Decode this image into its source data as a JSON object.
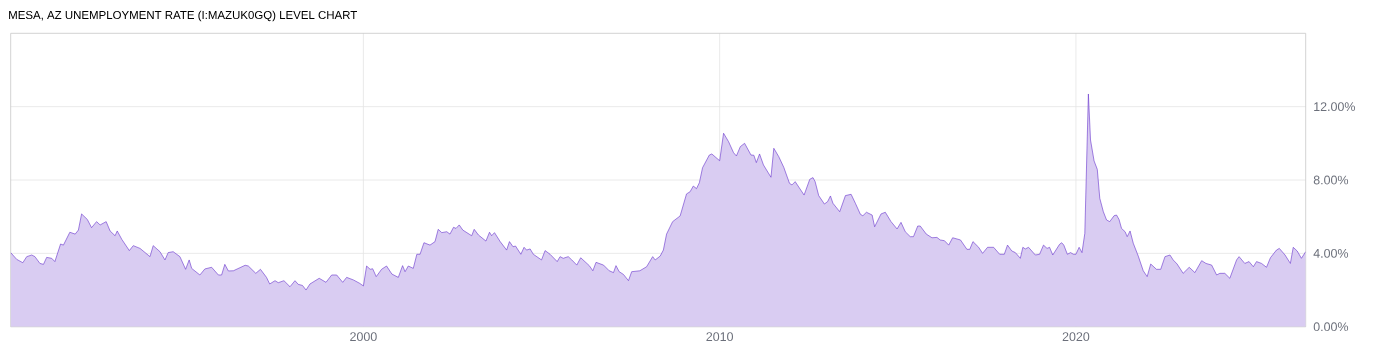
{
  "chart_data": {
    "type": "area",
    "title": "MESA, AZ UNEMPLOYMENT RATE (I:MAZUK0GQ) LEVEL CHART",
    "color": "#6633cc",
    "grid": true,
    "xlim": [
      1990.1,
      2026.45
    ],
    "ylim": [
      0,
      16
    ],
    "xticks": [
      2000,
      2010,
      2020
    ],
    "yticks": [
      {
        "value": 0,
        "label": "0.00%"
      },
      {
        "value": 4,
        "label": "4.00%"
      },
      {
        "value": 8,
        "label": "8.00%"
      },
      {
        "value": 12,
        "label": "12.00%"
      }
    ],
    "x": [
      1990.1,
      1990.27,
      1990.44,
      1990.55,
      1990.69,
      1990.78,
      1990.92,
      1991.02,
      1991.11,
      1991.25,
      1991.34,
      1991.5,
      1991.58,
      1991.76,
      1991.91,
      1992.0,
      1992.09,
      1992.25,
      1992.37,
      1992.51,
      1992.61,
      1992.78,
      1992.89,
      1993.03,
      1993.09,
      1993.22,
      1993.43,
      1993.54,
      1993.73,
      1994.01,
      1994.1,
      1994.29,
      1994.43,
      1994.52,
      1994.66,
      1994.85,
      1995.01,
      1995.11,
      1995.18,
      1995.41,
      1995.55,
      1995.74,
      1995.93,
      1996.02,
      1996.11,
      1996.21,
      1996.35,
      1996.68,
      1996.77,
      1996.98,
      1997.11,
      1997.28,
      1997.37,
      1997.52,
      1997.61,
      1997.77,
      1997.94,
      1998.08,
      1998.17,
      1998.29,
      1998.39,
      1998.5,
      1998.76,
      1998.95,
      1999.11,
      1999.25,
      1999.42,
      1999.53,
      1999.72,
      1999.9,
      2000.0,
      2000.09,
      2000.19,
      2000.26,
      2000.36,
      2000.51,
      2000.65,
      2000.8,
      2000.98,
      2001.1,
      2001.17,
      2001.26,
      2001.4,
      2001.5,
      2001.59,
      2001.7,
      2001.87,
      2002.01,
      2002.1,
      2002.2,
      2002.34,
      2002.43,
      2002.53,
      2002.6,
      2002.69,
      2002.79,
      2003.04,
      2003.11,
      2003.23,
      2003.44,
      2003.54,
      2003.6,
      2003.68,
      2003.84,
      2004.02,
      2004.1,
      2004.2,
      2004.27,
      2004.42,
      2004.51,
      2004.58,
      2004.68,
      2004.77,
      2005.0,
      2005.1,
      2005.24,
      2005.44,
      2005.52,
      2005.61,
      2005.75,
      2005.85,
      2005.99,
      2006.1,
      2006.34,
      2006.44,
      2006.53,
      2006.74,
      2006.9,
      2007.02,
      2007.09,
      2007.18,
      2007.3,
      2007.44,
      2007.53,
      2007.76,
      2007.95,
      2008.12,
      2008.19,
      2008.33,
      2008.42,
      2008.51,
      2008.68,
      2008.89,
      2009.07,
      2009.17,
      2009.26,
      2009.35,
      2009.43,
      2009.52,
      2009.71,
      2009.78,
      2010.0,
      2010.11,
      2010.25,
      2010.39,
      2010.47,
      2010.58,
      2010.7,
      2010.88,
      2010.96,
      2011.03,
      2011.12,
      2011.23,
      2011.44,
      2011.52,
      2011.66,
      2011.8,
      2011.96,
      2012.03,
      2012.12,
      2012.37,
      2012.53,
      2012.62,
      2012.68,
      2012.78,
      2012.94,
      2013.03,
      2013.11,
      2013.18,
      2013.37,
      2013.53,
      2013.69,
      2013.81,
      2013.95,
      2014.02,
      2014.12,
      2014.28,
      2014.35,
      2014.53,
      2014.65,
      2014.81,
      2014.98,
      2015.09,
      2015.21,
      2015.35,
      2015.44,
      2015.56,
      2015.63,
      2015.8,
      2015.96,
      2016.1,
      2016.19,
      2016.31,
      2016.43,
      2016.54,
      2016.76,
      2016.94,
      2017.02,
      2017.11,
      2017.27,
      2017.38,
      2017.52,
      2017.69,
      2017.86,
      2017.99,
      2018.08,
      2018.2,
      2018.3,
      2018.44,
      2018.51,
      2018.58,
      2018.67,
      2018.86,
      2018.98,
      2019.09,
      2019.19,
      2019.26,
      2019.35,
      2019.54,
      2019.6,
      2019.66,
      2019.76,
      2019.85,
      2019.93,
      2020.0,
      2020.09,
      2020.17,
      2020.25,
      2020.35,
      2020.41,
      2020.51,
      2020.6,
      2020.67,
      2020.77,
      2020.86,
      2020.95,
      2021.07,
      2021.14,
      2021.21,
      2021.28,
      2021.38,
      2021.44,
      2021.52,
      2021.61,
      2021.75,
      2021.89,
      2022.0,
      2022.1,
      2022.26,
      2022.38,
      2022.5,
      2022.64,
      2022.73,
      2022.84,
      2023.01,
      2023.18,
      2023.34,
      2023.53,
      2023.65,
      2023.81,
      2023.95,
      2024.04,
      2024.18,
      2024.32,
      2024.51,
      2024.58,
      2024.74,
      2024.86,
      2024.98,
      2025.07,
      2025.21,
      2025.35,
      2025.46,
      2025.63,
      2025.71,
      2025.87,
      2026.02,
      2026.1,
      2026.21,
      2026.33,
      2026.45
    ],
    "values": [
      4.04,
      3.67,
      3.49,
      3.82,
      3.91,
      3.82,
      3.45,
      3.4,
      3.78,
      3.73,
      3.55,
      4.51,
      4.45,
      5.15,
      5.05,
      5.27,
      6.15,
      5.85,
      5.4,
      5.73,
      5.55,
      5.73,
      5.22,
      4.96,
      5.22,
      4.76,
      4.15,
      4.42,
      4.27,
      3.82,
      4.42,
      4.09,
      3.64,
      4.04,
      4.09,
      3.82,
      3.13,
      3.64,
      3.18,
      2.82,
      3.15,
      3.24,
      2.82,
      2.82,
      3.4,
      3.04,
      3.05,
      3.35,
      3.31,
      2.91,
      3.13,
      2.69,
      2.33,
      2.51,
      2.4,
      2.51,
      2.18,
      2.51,
      2.31,
      2.25,
      2.0,
      2.33,
      2.64,
      2.42,
      2.82,
      2.82,
      2.42,
      2.69,
      2.55,
      2.36,
      2.22,
      3.31,
      3.13,
      3.16,
      2.73,
      3.13,
      3.31,
      2.87,
      2.69,
      3.33,
      3.0,
      3.31,
      3.18,
      3.95,
      3.95,
      4.58,
      4.45,
      4.64,
      5.31,
      5.13,
      5.18,
      5.05,
      5.42,
      5.36,
      5.55,
      5.27,
      4.96,
      5.31,
      5.0,
      4.67,
      5.15,
      4.96,
      5.13,
      4.64,
      4.18,
      4.64,
      4.36,
      4.4,
      3.95,
      4.33,
      4.18,
      4.24,
      3.95,
      3.64,
      4.15,
      3.95,
      3.55,
      3.82,
      3.73,
      3.82,
      3.64,
      3.36,
      3.76,
      3.33,
      3.05,
      3.51,
      3.36,
      3.05,
      2.95,
      3.33,
      3.0,
      2.85,
      2.51,
      3.0,
      3.05,
      3.27,
      3.82,
      3.64,
      3.85,
      4.18,
      5.05,
      5.73,
      6.04,
      7.24,
      7.36,
      7.67,
      7.53,
      7.85,
      8.67,
      9.36,
      9.42,
      9.05,
      10.55,
      10.09,
      9.49,
      9.31,
      9.82,
      10.0,
      9.36,
      9.35,
      8.95,
      9.42,
      8.82,
      8.15,
      9.73,
      9.27,
      8.69,
      7.82,
      7.73,
      7.91,
      7.18,
      8.04,
      8.13,
      7.91,
      7.15,
      6.69,
      6.82,
      7.13,
      6.73,
      6.27,
      7.15,
      7.22,
      6.73,
      6.13,
      6.05,
      6.24,
      6.09,
      5.45,
      6.15,
      6.24,
      5.73,
      5.33,
      5.69,
      5.18,
      4.91,
      4.91,
      5.49,
      5.49,
      5.05,
      4.85,
      4.87,
      4.73,
      4.69,
      4.45,
      4.85,
      4.73,
      4.22,
      4.22,
      4.64,
      4.33,
      4.0,
      4.33,
      4.33,
      3.95,
      3.95,
      4.45,
      4.13,
      4.04,
      3.73,
      4.33,
      4.24,
      4.33,
      3.91,
      3.95,
      4.45,
      4.27,
      4.33,
      3.91,
      4.49,
      4.58,
      4.45,
      3.95,
      4.04,
      3.95,
      3.95,
      4.33,
      4.04,
      5.09,
      12.69,
      10.18,
      9.04,
      8.58,
      7.0,
      6.27,
      5.82,
      5.73,
      6.05,
      6.09,
      5.85,
      5.36,
      5.18,
      4.91,
      5.22,
      4.55,
      3.85,
      3.05,
      2.73,
      3.42,
      3.13,
      3.13,
      3.82,
      3.91,
      3.64,
      3.42,
      2.91,
      3.24,
      2.95,
      3.6,
      3.45,
      3.36,
      2.82,
      2.91,
      2.91,
      2.64,
      3.64,
      3.82,
      3.45,
      3.55,
      3.27,
      3.55,
      3.45,
      3.24,
      3.76,
      4.18,
      4.27,
      3.91,
      3.45,
      4.33,
      4.13,
      3.73,
      4.09
    ]
  }
}
